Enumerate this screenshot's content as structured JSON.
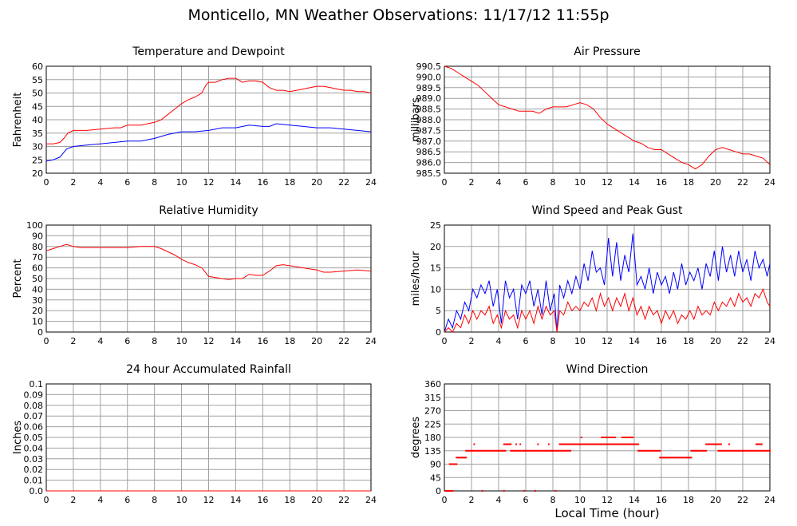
{
  "page_title": "Monticello, MN Weather Observations: 11/17/12 11:55p",
  "x_axis_label": "Local Time (hour)",
  "chart_data": [
    {
      "type": "line",
      "title": "Temperature and Dewpoint",
      "ylabel": "Fahrenheit",
      "xlim": [
        0,
        24
      ],
      "ylim": [
        20,
        60
      ],
      "xticks": [
        "0",
        "2",
        "4",
        "6",
        "8",
        "10",
        "12",
        "14",
        "16",
        "18",
        "20",
        "22",
        "24"
      ],
      "yticks": [
        "20",
        "25",
        "30",
        "35",
        "40",
        "45",
        "50",
        "55",
        "60"
      ],
      "grid": true,
      "series": [
        {
          "color": "#ff0000",
          "x": [
            0,
            0.5,
            1,
            1.3,
            1.6,
            2,
            2.5,
            3,
            4,
            5,
            5.5,
            6,
            7,
            7.5,
            8,
            8.5,
            9,
            9.5,
            10,
            10.5,
            11,
            11.5,
            11.8,
            12,
            12.5,
            13,
            13.5,
            14,
            14.5,
            15,
            15.5,
            16,
            16.5,
            17,
            17.5,
            18,
            18.5,
            19,
            19.5,
            20,
            20.5,
            21,
            21.5,
            22,
            22.5,
            23,
            23.5,
            24
          ],
          "values": [
            31,
            31,
            31.5,
            33,
            35,
            36,
            36,
            36,
            36.5,
            37,
            37,
            38,
            38,
            38.5,
            39,
            40,
            42,
            44,
            46,
            47.5,
            48.5,
            50,
            53,
            54,
            54,
            55,
            55.5,
            55.5,
            54,
            54.5,
            54.5,
            54,
            52,
            51,
            51,
            50.5,
            51,
            51.5,
            52,
            52.5,
            52.5,
            52,
            51.5,
            51,
            51,
            50.5,
            50.5,
            50
          ]
        },
        {
          "color": "#0000ff",
          "x": [
            0,
            0.5,
            1,
            1.5,
            2,
            3,
            4,
            5,
            6,
            7,
            8,
            9,
            10,
            11,
            12,
            13,
            14,
            15,
            16,
            16.5,
            17,
            18,
            19,
            20,
            21,
            22,
            23,
            24
          ],
          "values": [
            24.5,
            25,
            26,
            29,
            30,
            30.5,
            31,
            31.5,
            32,
            32,
            33,
            34.5,
            35.5,
            35.5,
            36,
            37,
            37,
            38,
            37.5,
            37.5,
            38.5,
            38,
            37.5,
            37,
            37,
            36.5,
            36,
            35.5
          ]
        }
      ]
    },
    {
      "type": "line",
      "title": "Air Pressure",
      "ylabel": "millibars",
      "xlim": [
        0,
        24
      ],
      "ylim": [
        985.5,
        990.5
      ],
      "xticks": [
        "0",
        "2",
        "4",
        "6",
        "8",
        "10",
        "12",
        "14",
        "16",
        "18",
        "20",
        "22",
        "24"
      ],
      "yticks": [
        "985.5",
        "986.0",
        "986.5",
        "987.0",
        "987.5",
        "988.0",
        "988.5",
        "989.0",
        "989.5",
        "990.0",
        "990.5"
      ],
      "grid": true,
      "series": [
        {
          "color": "#ff0000",
          "x": [
            0,
            0.5,
            1,
            1.5,
            2,
            2.5,
            3,
            3.5,
            4,
            4.5,
            5,
            5.5,
            6,
            6.5,
            7,
            7.5,
            8,
            8.5,
            9,
            9.5,
            10,
            10.5,
            11,
            11.5,
            12,
            12.5,
            13,
            13.5,
            14,
            14.5,
            15,
            15.5,
            16,
            16.5,
            17,
            17.5,
            18,
            18.5,
            19,
            19.5,
            20,
            20.5,
            21,
            21.5,
            22,
            22.5,
            23,
            23.5,
            24
          ],
          "values": [
            990.5,
            990.4,
            990.2,
            990.0,
            989.8,
            989.6,
            989.3,
            989.0,
            988.7,
            988.6,
            988.5,
            988.4,
            988.4,
            988.4,
            988.3,
            988.5,
            988.6,
            988.6,
            988.6,
            988.7,
            988.8,
            988.7,
            988.5,
            988.1,
            987.8,
            987.6,
            987.4,
            987.2,
            987.0,
            986.9,
            986.7,
            986.6,
            986.6,
            986.4,
            986.2,
            986.0,
            985.9,
            985.7,
            985.9,
            986.3,
            986.6,
            986.7,
            986.6,
            986.5,
            986.4,
            986.4,
            986.3,
            986.2,
            985.9
          ]
        }
      ]
    },
    {
      "type": "line",
      "title": "Relative Humidity",
      "ylabel": "Percent",
      "xlim": [
        0,
        24
      ],
      "ylim": [
        0,
        100
      ],
      "xticks": [
        "0",
        "2",
        "4",
        "6",
        "8",
        "10",
        "12",
        "14",
        "16",
        "18",
        "20",
        "22",
        "24"
      ],
      "yticks": [
        "0",
        "10",
        "20",
        "30",
        "40",
        "50",
        "60",
        "70",
        "80",
        "90",
        "100"
      ],
      "grid": true,
      "series": [
        {
          "color": "#ff0000",
          "x": [
            0,
            0.5,
            1,
            1.5,
            2,
            2.5,
            3,
            4,
            5,
            6,
            7,
            8,
            8.5,
            9,
            9.5,
            10,
            10.5,
            11,
            11.5,
            12,
            12.5,
            13,
            13.5,
            14,
            14.5,
            15,
            15.5,
            16,
            16.5,
            17,
            17.5,
            18,
            19,
            20,
            20.5,
            21,
            22,
            23,
            24
          ],
          "values": [
            76,
            78,
            80,
            82,
            80,
            79,
            79,
            79,
            79,
            79,
            80,
            80,
            78,
            75,
            72,
            68,
            65,
            63,
            60,
            52,
            51,
            50,
            49,
            50,
            50,
            54,
            53,
            53,
            57,
            62,
            63,
            62,
            60,
            58,
            56,
            56,
            57,
            58,
            57
          ]
        }
      ]
    },
    {
      "type": "line",
      "title": "Wind Speed and Peak Gust",
      "ylabel": "miles/hour",
      "xlim": [
        0,
        24
      ],
      "ylim": [
        0,
        25
      ],
      "xticks": [
        "0",
        "2",
        "4",
        "6",
        "8",
        "10",
        "12",
        "14",
        "16",
        "18",
        "20",
        "22",
        "24"
      ],
      "yticks": [
        "0",
        "5",
        "10",
        "15",
        "20",
        "25"
      ],
      "grid": true,
      "series": [
        {
          "color": "#0000ff",
          "x": [
            0,
            0.3,
            0.6,
            0.9,
            1.2,
            1.5,
            1.8,
            2.1,
            2.4,
            2.7,
            3,
            3.3,
            3.6,
            3.9,
            4.2,
            4.5,
            4.8,
            5.1,
            5.4,
            5.7,
            6,
            6.3,
            6.6,
            6.9,
            7.2,
            7.5,
            7.8,
            8.1,
            8.3,
            8.5,
            8.8,
            9.1,
            9.4,
            9.7,
            10,
            10.3,
            10.6,
            10.9,
            11.2,
            11.5,
            11.8,
            12.1,
            12.4,
            12.7,
            13,
            13.3,
            13.6,
            13.9,
            14.2,
            14.5,
            14.8,
            15.1,
            15.4,
            15.7,
            16,
            16.3,
            16.6,
            16.9,
            17.2,
            17.5,
            17.8,
            18.1,
            18.4,
            18.7,
            19,
            19.3,
            19.6,
            19.9,
            20.2,
            20.5,
            20.8,
            21.1,
            21.4,
            21.7,
            22,
            22.3,
            22.6,
            22.9,
            23.2,
            23.5,
            23.8,
            24
          ],
          "values": [
            0,
            3,
            1,
            5,
            3,
            7,
            5,
            10,
            8,
            11,
            9,
            12,
            6,
            10,
            2,
            12,
            8,
            10,
            3,
            11,
            9,
            12,
            6,
            10,
            4,
            12,
            5,
            9,
            0,
            11,
            8,
            12,
            9,
            13,
            10,
            16,
            12,
            19,
            14,
            15,
            11,
            22,
            13,
            21,
            12,
            18,
            14,
            23,
            11,
            13,
            10,
            15,
            9,
            14,
            11,
            13,
            9,
            14,
            10,
            16,
            11,
            14,
            12,
            15,
            10,
            16,
            13,
            19,
            12,
            20,
            14,
            18,
            13,
            19,
            14,
            17,
            12,
            19,
            15,
            17,
            13,
            16
          ]
        },
        {
          "color": "#ff0000",
          "x": [
            0,
            0.3,
            0.6,
            0.9,
            1.2,
            1.5,
            1.8,
            2.1,
            2.4,
            2.7,
            3,
            3.3,
            3.6,
            3.9,
            4.2,
            4.5,
            4.8,
            5.1,
            5.4,
            5.7,
            6,
            6.3,
            6.6,
            6.9,
            7.2,
            7.5,
            7.8,
            8.1,
            8.3,
            8.5,
            8.8,
            9.1,
            9.4,
            9.7,
            10,
            10.3,
            10.6,
            10.9,
            11.2,
            11.5,
            11.8,
            12.1,
            12.4,
            12.7,
            13,
            13.3,
            13.6,
            13.9,
            14.2,
            14.5,
            14.8,
            15.1,
            15.4,
            15.7,
            16,
            16.3,
            16.6,
            16.9,
            17.2,
            17.5,
            17.8,
            18.1,
            18.4,
            18.7,
            19,
            19.3,
            19.6,
            19.9,
            20.2,
            20.5,
            20.8,
            21.1,
            21.4,
            21.7,
            22,
            22.3,
            22.6,
            22.9,
            23.2,
            23.5,
            23.8,
            24
          ],
          "values": [
            0,
            1,
            0,
            2,
            1,
            4,
            2,
            5,
            3,
            5,
            4,
            6,
            2,
            4,
            1,
            5,
            3,
            4,
            1,
            5,
            3,
            5,
            2,
            6,
            3,
            6,
            4,
            5,
            0,
            5,
            4,
            7,
            5,
            6,
            5,
            7,
            6,
            8,
            5,
            9,
            6,
            8,
            5,
            8,
            6,
            9,
            5,
            8,
            4,
            6,
            3,
            6,
            4,
            5,
            2,
            5,
            3,
            5,
            2,
            4,
            3,
            5,
            3,
            6,
            4,
            5,
            4,
            7,
            5,
            7,
            6,
            8,
            6,
            9,
            7,
            8,
            6,
            9,
            8,
            10,
            7,
            6
          ]
        }
      ]
    },
    {
      "type": "line",
      "title": "24 hour Accumulated Rainfall",
      "ylabel": "Inches",
      "xlim": [
        0,
        24
      ],
      "ylim": [
        0,
        0.1
      ],
      "xticks": [
        "0",
        "2",
        "4",
        "6",
        "8",
        "10",
        "12",
        "14",
        "16",
        "18",
        "20",
        "22",
        "24"
      ],
      "yticks": [
        "0.0",
        "0.01",
        "0.02",
        "0.03",
        "0.04",
        "0.05",
        "0.06",
        "0.07",
        "0.08",
        "0.09",
        "0.1"
      ],
      "grid": true,
      "series": [
        {
          "color": "#ff0000",
          "x": [
            0,
            24
          ],
          "values": [
            0,
            0
          ]
        }
      ]
    },
    {
      "type": "scatter",
      "title": "Wind Direction",
      "ylabel": "degrees",
      "xlim": [
        0,
        24
      ],
      "ylim": [
        0,
        360
      ],
      "xticks": [
        "0",
        "2",
        "4",
        "6",
        "8",
        "10",
        "12",
        "14",
        "16",
        "18",
        "20",
        "22",
        "24"
      ],
      "yticks": [
        "0",
        "45",
        "90",
        "135",
        "180",
        "225",
        "270",
        "315",
        "360"
      ],
      "grid": true,
      "series": [
        {
          "color": "#ff0000",
          "segments": [
            {
              "x0": 0.1,
              "x1": 0.6,
              "value": 0
            },
            {
              "x0": 0.4,
              "x1": 0.9,
              "value": 90
            },
            {
              "x0": 0.9,
              "x1": 1.6,
              "value": 112
            },
            {
              "x0": 1.6,
              "x1": 4.5,
              "value": 135
            },
            {
              "x0": 4.4,
              "x1": 4.9,
              "value": 157
            },
            {
              "x0": 4.9,
              "x1": 7.9,
              "value": 135
            },
            {
              "x0": 7.9,
              "x1": 9.3,
              "value": 135
            },
            {
              "x0": 8.5,
              "x1": 9.3,
              "value": 157
            },
            {
              "x0": 9.3,
              "x1": 11.5,
              "value": 157
            },
            {
              "x0": 11.6,
              "x1": 12.6,
              "value": 180
            },
            {
              "x0": 11.5,
              "x1": 14.3,
              "value": 157
            },
            {
              "x0": 13.1,
              "x1": 13.9,
              "value": 180
            },
            {
              "x0": 14.3,
              "x1": 15.9,
              "value": 135
            },
            {
              "x0": 15.9,
              "x1": 18.2,
              "value": 112
            },
            {
              "x0": 18.2,
              "x1": 19.3,
              "value": 135
            },
            {
              "x0": 19.3,
              "x1": 20.3,
              "value": 157
            },
            {
              "x0": 20.2,
              "x1": 24,
              "value": 135
            },
            {
              "x0": 23,
              "x1": 23.4,
              "value": 157
            }
          ],
          "points": [
            [
              0.15,
              0
            ],
            [
              0.45,
              0
            ],
            [
              2.8,
              0
            ],
            [
              4.4,
              0
            ],
            [
              5.9,
              0
            ],
            [
              6.7,
              0
            ],
            [
              8.2,
              0
            ],
            [
              2.2,
              157
            ],
            [
              5.3,
              157
            ],
            [
              5.6,
              157
            ],
            [
              6.9,
              157
            ],
            [
              7.7,
              157
            ],
            [
              10.1,
              180
            ],
            [
              11.9,
              180
            ],
            [
              20.4,
              157
            ],
            [
              21.0,
              157
            ],
            [
              22.0,
              135
            ]
          ]
        }
      ]
    }
  ]
}
